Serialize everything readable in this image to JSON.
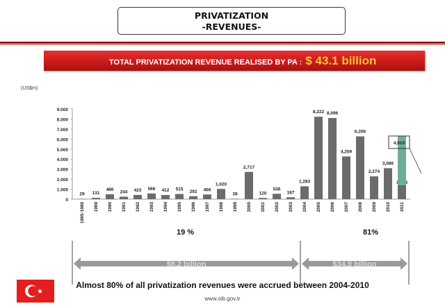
{
  "header": {
    "title_line1": "PRIVATIZATION",
    "title_line2": "-REVENUES-"
  },
  "banner": {
    "label": "TOTAL  PRIVATIZATION  REVENUE  REALISED BY PA : ",
    "amount": "$ 43.1 billion"
  },
  "chart_data": {
    "type": "bar",
    "unit_label": "(US$m)",
    "categories": [
      "1985-1988",
      "1989",
      "1990",
      "1991",
      "1992",
      "1993",
      "1994",
      "1995",
      "1996",
      "1997",
      "1998",
      "1999",
      "2000",
      "2001",
      "2002",
      "2003",
      "2004",
      "2005",
      "2006",
      "2007",
      "2008",
      "2009",
      "2010",
      "2011"
    ],
    "values": [
      29,
      131,
      486,
      244,
      423,
      566,
      412,
      515,
      292,
      466,
      1020,
      38,
      2717,
      120,
      536,
      187,
      1283,
      8222,
      8096,
      4259,
      6266,
      2274,
      3086,
      1388
    ],
    "value_labels": [
      "29",
      "131",
      "486",
      "244",
      "423",
      "566",
      "412",
      "515",
      "292",
      "466",
      "1,020",
      "38",
      "2,717",
      "120",
      "536",
      "187",
      "1,283",
      "8,222",
      "8,096",
      "4,259",
      "6,266",
      "2,274",
      "3,086",
      "1,388"
    ],
    "stacked_extra": {
      "category": "2011",
      "value": 4919,
      "label": "4,919",
      "color": "#6fae96"
    },
    "yticks": [
      0,
      1000,
      2000,
      3000,
      4000,
      5000,
      6000,
      7000,
      8000,
      9000
    ],
    "ytick_labels": [
      "0",
      "1.000",
      "2.000",
      "3.000",
      "4.000",
      "5.000",
      "6.000",
      "7.000",
      "8.000",
      "9.000"
    ],
    "ylim": [
      0,
      9000
    ],
    "bar_color": "#6b6b6b"
  },
  "periods": [
    {
      "percent": "19 %",
      "amount": "$8.2 billion"
    },
    {
      "percent": "81%",
      "amount": "$34.9 billion"
    }
  ],
  "footer": {
    "note": "Almost 80% of all privatization revenues were accrued between 2004-2010",
    "url": "www.oib.gov.tr"
  }
}
